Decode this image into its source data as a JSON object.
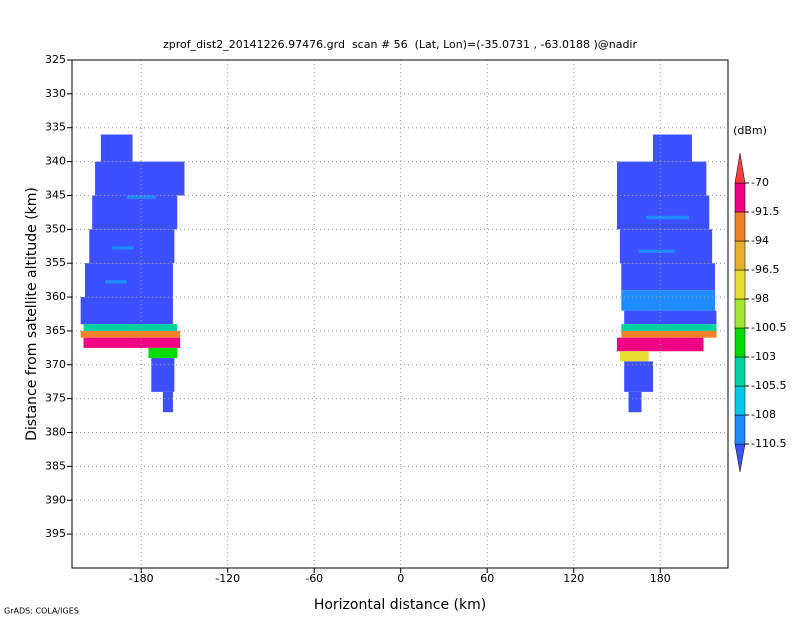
{
  "chart_data": {
    "type": "heatmap",
    "title": "zprof_dist2_20141226.97476.grd  scan # 56  (Lat, Lon)=(-35.0731 , -63.0188 )@nadir",
    "x_label": "Horizontal distance (km)",
    "y_label": "Distance from satellite altitude (km)",
    "colorbar_label": "(dBm)",
    "footer": "GrADS: COLA/IGES",
    "xlim": [
      -228,
      227
    ],
    "xticks": [
      -180,
      -120,
      -60,
      0,
      60,
      120,
      180
    ],
    "ylim": [
      400,
      325
    ],
    "yticks": [
      325,
      330,
      335,
      340,
      345,
      350,
      355,
      360,
      365,
      370,
      375,
      380,
      385,
      390,
      395
    ],
    "grid": true,
    "levels": [
      -110.5,
      -108,
      -105.5,
      -103,
      -100.5,
      -98,
      -96.5,
      -94,
      -91.5,
      -70
    ],
    "colors": [
      "#3c50ff",
      "#1e8cff",
      "#00c8e6",
      "#00d2a0",
      "#00dc00",
      "#a0e632",
      "#e6dc32",
      "#e6af2d",
      "#f08228",
      "#f00082",
      "#fa3c3c"
    ],
    "cells": [
      {
        "x": [
          -208,
          -186
        ],
        "y": [
          336,
          340
        ],
        "value": -112
      },
      {
        "x": [
          -212,
          -150
        ],
        "y": [
          340,
          345
        ],
        "value": -112
      },
      {
        "x": [
          -214,
          -155
        ],
        "y": [
          345,
          350
        ],
        "value": -112
      },
      {
        "x": [
          -216,
          -157
        ],
        "y": [
          350,
          355
        ],
        "value": -112
      },
      {
        "x": [
          -219,
          -158
        ],
        "y": [
          355,
          360
        ],
        "value": -112
      },
      {
        "x": [
          -222,
          -158
        ],
        "y": [
          360,
          364
        ],
        "value": -112
      },
      {
        "x": [
          -190,
          -170
        ],
        "y": [
          345,
          345.5
        ],
        "value": -109
      },
      {
        "x": [
          -200,
          -185
        ],
        "y": [
          352.5,
          353
        ],
        "value": -109
      },
      {
        "x": [
          -205,
          -190
        ],
        "y": [
          357.5,
          358
        ],
        "value": -109
      },
      {
        "x": [
          -220,
          -155
        ],
        "y": [
          364,
          365
        ],
        "value": -104
      },
      {
        "x": [
          -222,
          -153
        ],
        "y": [
          365,
          366
        ],
        "value": -93
      },
      {
        "x": [
          -220,
          -153
        ],
        "y": [
          366,
          367.5
        ],
        "value": -85
      },
      {
        "x": [
          -175,
          -155
        ],
        "y": [
          367.5,
          369
        ],
        "value": -101
      },
      {
        "x": [
          -173,
          -157
        ],
        "y": [
          369,
          374
        ],
        "value": -112
      },
      {
        "x": [
          -165,
          -158
        ],
        "y": [
          374,
          377
        ],
        "value": -112
      },
      {
        "x": [
          175,
          202
        ],
        "y": [
          336,
          340
        ],
        "value": -112
      },
      {
        "x": [
          150,
          212
        ],
        "y": [
          340,
          345
        ],
        "value": -112
      },
      {
        "x": [
          150,
          214
        ],
        "y": [
          345,
          350
        ],
        "value": -112
      },
      {
        "x": [
          152,
          216
        ],
        "y": [
          350,
          355
        ],
        "value": -112
      },
      {
        "x": [
          153,
          218
        ],
        "y": [
          355,
          359
        ],
        "value": -112
      },
      {
        "x": [
          153,
          218
        ],
        "y": [
          359,
          362
        ],
        "value": -109
      },
      {
        "x": [
          155,
          219
        ],
        "y": [
          362,
          364
        ],
        "value": -112
      },
      {
        "x": [
          170,
          200
        ],
        "y": [
          348,
          348.5
        ],
        "value": -109
      },
      {
        "x": [
          165,
          190
        ],
        "y": [
          353,
          353.5
        ],
        "value": -109
      },
      {
        "x": [
          153,
          219
        ],
        "y": [
          364,
          365
        ],
        "value": -104
      },
      {
        "x": [
          153,
          219
        ],
        "y": [
          365,
          366
        ],
        "value": -93
      },
      {
        "x": [
          150,
          210
        ],
        "y": [
          366,
          368
        ],
        "value": -85
      },
      {
        "x": [
          152,
          172
        ],
        "y": [
          368,
          369.5
        ],
        "value": -98
      },
      {
        "x": [
          155,
          175
        ],
        "y": [
          369.5,
          374
        ],
        "value": -112
      },
      {
        "x": [
          158,
          167
        ],
        "y": [
          374,
          377
        ],
        "value": -112
      }
    ]
  }
}
